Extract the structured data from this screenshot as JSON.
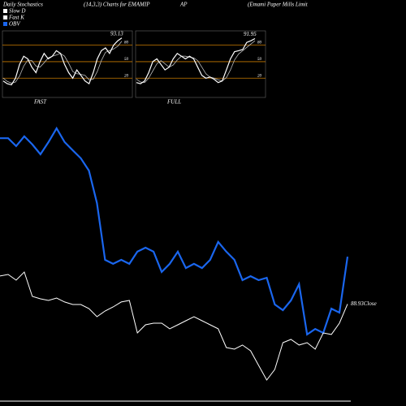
{
  "header": {
    "title": "Daily Stochastics",
    "params": "(14,3,3) Charts for EMAMIP",
    "ticker_tail": "AP",
    "company": "(Emami  Paper Mills Limit"
  },
  "chart_data": [
    {
      "type": "line",
      "title": "FAST",
      "ylim": [
        -15,
        103
      ],
      "yticks": [
        20,
        50,
        80
      ],
      "grid": true,
      "grid_color": "#c87a00",
      "series": [
        {
          "name": "Slow D",
          "color": "#bbbbbb",
          "values": [
            20,
            14,
            11,
            13,
            24,
            42,
            53,
            52,
            42,
            40,
            48,
            57,
            60,
            62,
            65,
            60,
            47,
            32,
            28,
            27,
            25,
            17,
            18,
            32,
            52,
            67,
            70,
            73,
            78,
            87
          ]
        },
        {
          "name": "Fast K",
          "color": "#ffffff",
          "values": [
            15,
            10,
            8,
            20,
            45,
            60,
            55,
            40,
            30,
            50,
            65,
            55,
            60,
            70,
            65,
            45,
            30,
            20,
            35,
            25,
            15,
            10,
            30,
            55,
            70,
            75,
            65,
            80,
            88,
            93.13
          ]
        }
      ]
    },
    {
      "type": "line",
      "title": "FULL",
      "ylim": [
        -15,
        103
      ],
      "yticks": [
        20,
        50,
        80
      ],
      "grid": true,
      "grid_color": "#c87a00",
      "series": [
        {
          "name": "Slow D",
          "color": "#bbbbbb",
          "values": [
            18,
            13,
            12,
            20,
            33,
            46,
            52,
            46,
            40,
            44,
            53,
            60,
            60,
            58,
            57,
            52,
            40,
            28,
            22,
            20,
            17,
            15,
            21,
            35,
            53,
            64,
            70,
            76,
            82,
            88
          ]
        },
        {
          "name": "Fast K",
          "color": "#ffffff",
          "values": [
            12,
            10,
            15,
            30,
            50,
            55,
            45,
            35,
            40,
            55,
            65,
            60,
            55,
            60,
            55,
            40,
            25,
            20,
            22,
            18,
            12,
            15,
            35,
            55,
            68,
            70,
            72,
            85,
            88,
            91.95
          ]
        }
      ]
    },
    {
      "type": "line",
      "ylim": [
        75,
        120
      ],
      "y2lim": [
        0,
        100
      ],
      "series": [
        {
          "name": "OBV",
          "color": "#1a66ee",
          "axis": "y2",
          "values": [
            93.8,
            93.8,
            90.8,
            94.5,
            91.4,
            87.7,
            92.3,
            97.5,
            92.3,
            89.2,
            86.2,
            81.5,
            69.2,
            47.7,
            46.2,
            47.7,
            46.2,
            50.8,
            52.3,
            50.8,
            43.1,
            46.2,
            50.8,
            44.6,
            46.2,
            44.6,
            47.7,
            54.5,
            50.8,
            47.7,
            40.0,
            41.5,
            40.0,
            40.9,
            30.8,
            28.6,
            32.3,
            38.5,
            19.4,
            21.5,
            20.0,
            29.2,
            27.7,
            48.9
          ]
        },
        {
          "name": "Close",
          "color": "#ffffff",
          "values": [
            93.7,
            93.97,
            93.0,
            94.39,
            90.23,
            89.82,
            89.54,
            89.96,
            89.27,
            88.85,
            88.85,
            88.16,
            86.77,
            87.74,
            88.43,
            89.27,
            89.54,
            84.0,
            85.39,
            85.66,
            85.66,
            84.7,
            85.39,
            86.08,
            86.77,
            86.08,
            85.39,
            84.7,
            81.51,
            81.23,
            81.93,
            80.96,
            78.46,
            75.97,
            77.77,
            82.34,
            82.89,
            81.93,
            82.34,
            81.23,
            84.0,
            83.73,
            85.66,
            88.93
          ]
        }
      ]
    }
  ]
}
